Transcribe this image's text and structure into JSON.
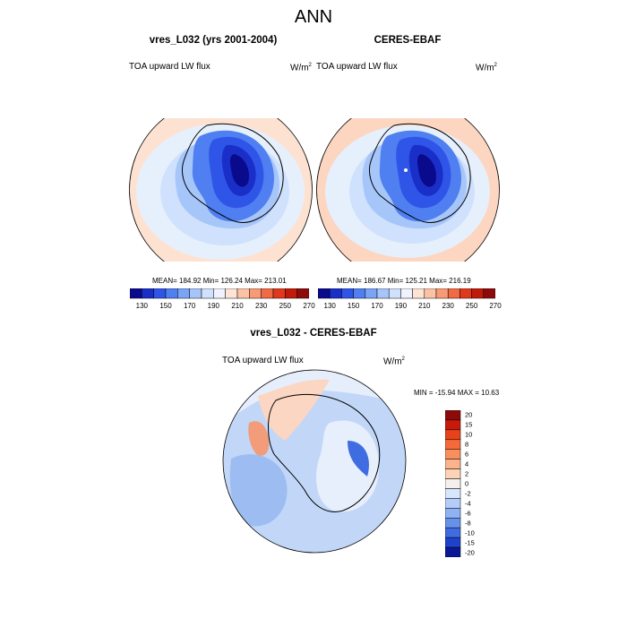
{
  "figure": {
    "title": "ANN",
    "left_panel": {
      "title": "vres_L032 (yrs 2001-2004)",
      "variable": "TOA upward LW flux",
      "units": "W/m",
      "units_sup": "2",
      "stats": "MEAN= 184.92  Min= 126.24  Max= 213.01"
    },
    "right_panel": {
      "title": "CERES-EBAF",
      "variable": "TOA upward LW flux",
      "units": "W/m",
      "units_sup": "2",
      "stats": "MEAN= 186.67  Min= 125.21  Max= 216.19"
    },
    "diff_panel": {
      "title": "vres_L032 - CERES-EBAF",
      "variable": "TOA upward LW flux",
      "units": "W/m",
      "units_sup": "2",
      "stats": "MIN = -15.94 MAX =  10.63"
    },
    "colorbar_top": {
      "tick_labels": [
        "130",
        "150",
        "170",
        "190",
        "210",
        "230",
        "250",
        "270"
      ],
      "colors": [
        "#0a0a8c",
        "#1a2fc8",
        "#2f55e8",
        "#4f7ff0",
        "#7aa4f5",
        "#a6c6fa",
        "#cfe1fc",
        "#f0f2ff",
        "#fde4d4",
        "#fbc3a6",
        "#f79a75",
        "#f06a45",
        "#e03a1c",
        "#c01a0a",
        "#8c0a0a"
      ]
    },
    "colorbar_diff": {
      "tick_labels": [
        "20",
        "15",
        "10",
        "8",
        "6",
        "4",
        "2",
        "0",
        "-2",
        "-4",
        "-6",
        "-8",
        "-10",
        "-15",
        "-20"
      ],
      "colors": [
        "#8c0a0a",
        "#c81a0a",
        "#e8421a",
        "#f46a3a",
        "#f8905e",
        "#fbb38c",
        "#fdd3b8",
        "#f5f0ee",
        "#d8e6fc",
        "#b4cdf8",
        "#8fb2f2",
        "#6792ea",
        "#3f6ce0",
        "#1f42cc",
        "#0a1896"
      ]
    }
  },
  "chart_data": {
    "type": "heatmap",
    "title": "ANN",
    "panels": [
      {
        "name": "vres_L032 (yrs 2001-2004)",
        "variable": "TOA upward LW flux",
        "mean": 184.92,
        "min": 126.24,
        "max": 213.01
      },
      {
        "name": "CERES-EBAF",
        "variable": "TOA upward LW flux",
        "mean": 186.67,
        "min": 125.21,
        "max": 216.19
      },
      {
        "name": "vres_L032 - CERES-EBAF",
        "variable": "TOA upward LW flux",
        "min": -15.94,
        "max": 10.63
      }
    ],
    "colorbar_levels_abs": [
      130,
      150,
      170,
      190,
      210,
      230,
      250,
      270
    ],
    "colorbar_levels_diff": [
      20,
      15,
      10,
      8,
      6,
      4,
      2,
      0,
      -2,
      -4,
      -6,
      -8,
      -10,
      -15,
      -20
    ]
  }
}
